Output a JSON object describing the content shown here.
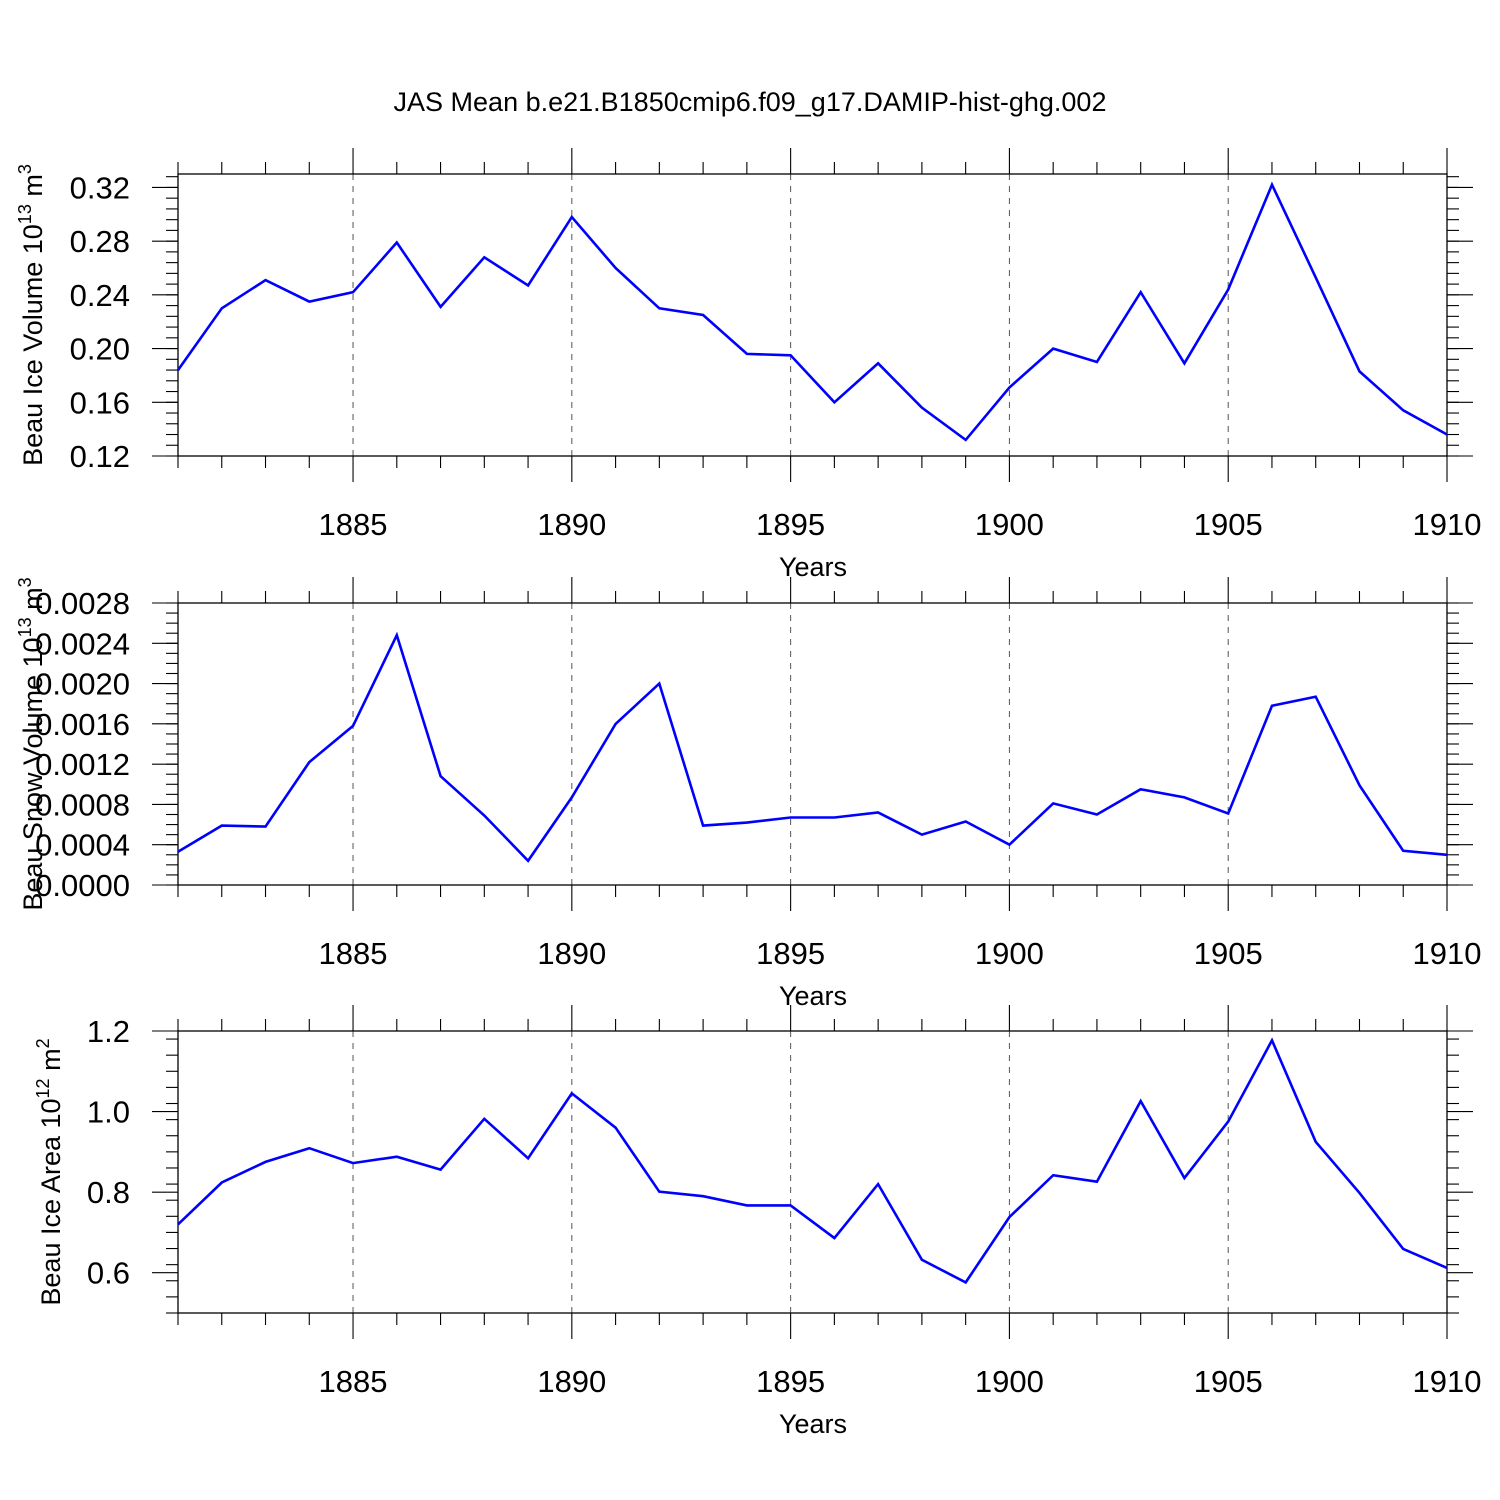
{
  "title": "JAS Mean b.e21.B1850cmip6.f09_g17.DAMIP-hist-ghg.002",
  "chart_data": [
    {
      "type": "line",
      "ylabel_main": "Beau Ice Volume 10",
      "ylabel_sup": "13",
      "ylabel_unit": "m",
      "ylabel_unit_sup": "3",
      "xlabel": "Years",
      "xlim": [
        1881,
        1910
      ],
      "ylim": [
        0.12,
        0.33
      ],
      "yticks": [
        0.12,
        0.16,
        0.2,
        0.24,
        0.28,
        0.32
      ],
      "ytick_labels": [
        "0.12",
        "0.16",
        "0.20",
        "0.24",
        "0.28",
        "0.32"
      ],
      "yminor_step": 0.008,
      "xticks": [
        1885,
        1890,
        1895,
        1900,
        1905,
        1910
      ],
      "xtick_labels": [
        "1885",
        "1890",
        "1895",
        "1900",
        "1905",
        "1910"
      ],
      "x": [
        1881,
        1882,
        1883,
        1884,
        1885,
        1886,
        1887,
        1888,
        1889,
        1890,
        1891,
        1892,
        1893,
        1894,
        1895,
        1896,
        1897,
        1898,
        1899,
        1900,
        1901,
        1902,
        1903,
        1904,
        1905,
        1906,
        1907,
        1908,
        1909,
        1910
      ],
      "values": [
        0.184,
        0.23,
        0.251,
        0.235,
        0.242,
        0.279,
        0.231,
        0.268,
        0.247,
        0.298,
        0.26,
        0.23,
        0.225,
        0.196,
        0.195,
        0.16,
        0.189,
        0.156,
        0.132,
        0.171,
        0.2,
        0.19,
        0.242,
        0.189,
        0.244,
        0.322,
        0.253,
        0.183,
        0.154,
        0.136
      ],
      "color": "#0000ff"
    },
    {
      "type": "line",
      "ylabel_main": "Beau Snow Volume 10",
      "ylabel_sup": "13",
      "ylabel_unit": "m",
      "ylabel_unit_sup": "3",
      "xlabel": "Years",
      "xlim": [
        1881,
        1910
      ],
      "ylim": [
        0.0,
        0.0028
      ],
      "yticks": [
        0.0,
        0.0004,
        0.0008,
        0.0012,
        0.0016,
        0.002,
        0.0024,
        0.0028
      ],
      "ytick_labels": [
        "0.0000",
        "0.0004",
        "0.0008",
        "0.0012",
        "0.0016",
        "0.0020",
        "0.0024",
        "0.0028"
      ],
      "yminor_step": 0.0001,
      "xticks": [
        1885,
        1890,
        1895,
        1900,
        1905,
        1910
      ],
      "xtick_labels": [
        "1885",
        "1890",
        "1895",
        "1900",
        "1905",
        "1910"
      ],
      "x": [
        1881,
        1882,
        1883,
        1884,
        1885,
        1886,
        1887,
        1888,
        1889,
        1890,
        1891,
        1892,
        1893,
        1894,
        1895,
        1896,
        1897,
        1898,
        1899,
        1900,
        1901,
        1902,
        1903,
        1904,
        1905,
        1906,
        1907,
        1908,
        1909,
        1910
      ],
      "values": [
        0.00033,
        0.00059,
        0.00058,
        0.00122,
        0.00158,
        0.00248,
        0.00108,
        0.00069,
        0.00024,
        0.00087,
        0.0016,
        0.002,
        0.00059,
        0.00062,
        0.00067,
        0.00067,
        0.00072,
        0.0005,
        0.00063,
        0.0004,
        0.00081,
        0.0007,
        0.00095,
        0.00087,
        0.00071,
        0.00178,
        0.00187,
        0.00099,
        0.00034,
        0.0003
      ],
      "color": "#0000ff"
    },
    {
      "type": "line",
      "ylabel_main": "Beau Ice Area 10",
      "ylabel_sup": "12",
      "ylabel_unit": "m",
      "ylabel_unit_sup": "2",
      "xlabel": "Years",
      "xlim": [
        1881,
        1910
      ],
      "ylim": [
        0.5,
        1.2
      ],
      "yticks": [
        0.6,
        0.8,
        1.0,
        1.2
      ],
      "ytick_labels": [
        "0.6",
        "0.8",
        "1.0",
        "1.2"
      ],
      "yminor_step": 0.04,
      "xticks": [
        1885,
        1890,
        1895,
        1900,
        1905,
        1910
      ],
      "xtick_labels": [
        "1885",
        "1890",
        "1895",
        "1900",
        "1905",
        "1910"
      ],
      "x": [
        1881,
        1882,
        1883,
        1884,
        1885,
        1886,
        1887,
        1888,
        1889,
        1890,
        1891,
        1892,
        1893,
        1894,
        1895,
        1896,
        1897,
        1898,
        1899,
        1900,
        1901,
        1902,
        1903,
        1904,
        1905,
        1906,
        1907,
        1908,
        1909,
        1910
      ],
      "values": [
        0.72,
        0.824,
        0.875,
        0.909,
        0.872,
        0.888,
        0.856,
        0.982,
        0.884,
        1.045,
        0.96,
        0.801,
        0.79,
        0.767,
        0.767,
        0.686,
        0.82,
        0.632,
        0.576,
        0.738,
        0.842,
        0.826,
        1.026,
        0.835,
        0.975,
        1.177,
        0.925,
        0.798,
        0.659,
        0.612
      ],
      "color": "#0000ff"
    }
  ]
}
